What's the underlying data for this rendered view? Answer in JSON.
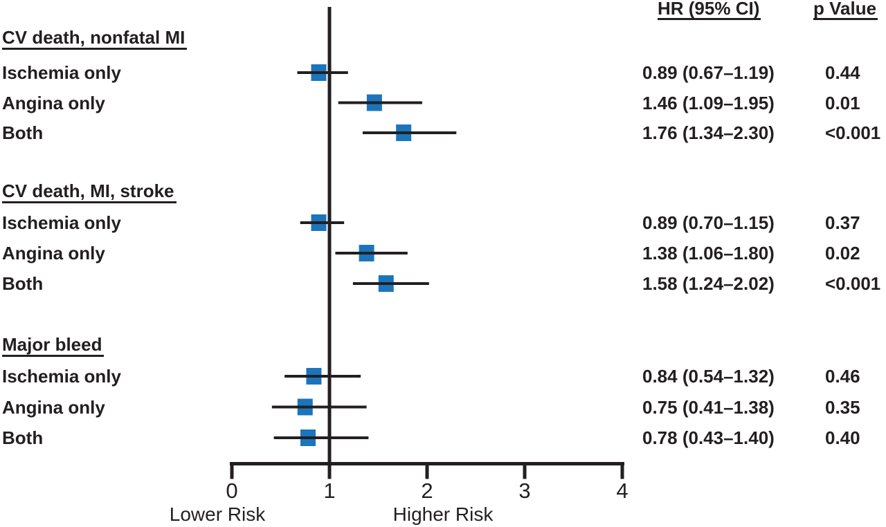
{
  "chart_data": {
    "type": "forest",
    "description": "Forest plot of hazard ratios with 95% confidence intervals",
    "marker_color": "#1b75bc",
    "line_color": "#231f20",
    "columns": {
      "hr_header": "HR (95% CI)",
      "p_header": "p Value"
    },
    "axis": {
      "min": 0,
      "max": 4,
      "ticks": [
        0,
        1,
        2,
        3,
        4
      ],
      "ref_line": 1,
      "label_left": "Lower Risk",
      "label_right": "Higher Risk",
      "grid": false
    },
    "groups": [
      {
        "label": "CV death, nonfatal MI",
        "rows": [
          {
            "label": "Ischemia only",
            "hr": 0.89,
            "ci_low": 0.67,
            "ci_high": 1.19,
            "hr_text": "0.89 (0.67–1.19)",
            "p_text": "0.44"
          },
          {
            "label": "Angina only",
            "hr": 1.46,
            "ci_low": 1.09,
            "ci_high": 1.95,
            "hr_text": "1.46 (1.09–1.95)",
            "p_text": "0.01"
          },
          {
            "label": "Both",
            "hr": 1.76,
            "ci_low": 1.34,
            "ci_high": 2.3,
            "hr_text": "1.76 (1.34–2.30)",
            "p_text": "<0.001"
          }
        ]
      },
      {
        "label": "CV death, MI, stroke",
        "rows": [
          {
            "label": "Ischemia only",
            "hr": 0.89,
            "ci_low": 0.7,
            "ci_high": 1.15,
            "hr_text": "0.89 (0.70–1.15)",
            "p_text": "0.37"
          },
          {
            "label": "Angina only",
            "hr": 1.38,
            "ci_low": 1.06,
            "ci_high": 1.8,
            "hr_text": "1.38 (1.06–1.80)",
            "p_text": "0.02"
          },
          {
            "label": "Both",
            "hr": 1.58,
            "ci_low": 1.24,
            "ci_high": 2.02,
            "hr_text": "1.58 (1.24–2.02)",
            "p_text": "<0.001"
          }
        ]
      },
      {
        "label": "Major bleed",
        "rows": [
          {
            "label": "Ischemia only",
            "hr": 0.84,
            "ci_low": 0.54,
            "ci_high": 1.32,
            "hr_text": "0.84 (0.54–1.32)",
            "p_text": "0.46"
          },
          {
            "label": "Angina only",
            "hr": 0.75,
            "ci_low": 0.41,
            "ci_high": 1.38,
            "hr_text": "0.75 (0.41–1.38)",
            "p_text": "0.35"
          },
          {
            "label": "Both",
            "hr": 0.78,
            "ci_low": 0.43,
            "ci_high": 1.4,
            "hr_text": "0.78 (0.43–1.40)",
            "p_text": "0.40"
          }
        ]
      }
    ]
  }
}
